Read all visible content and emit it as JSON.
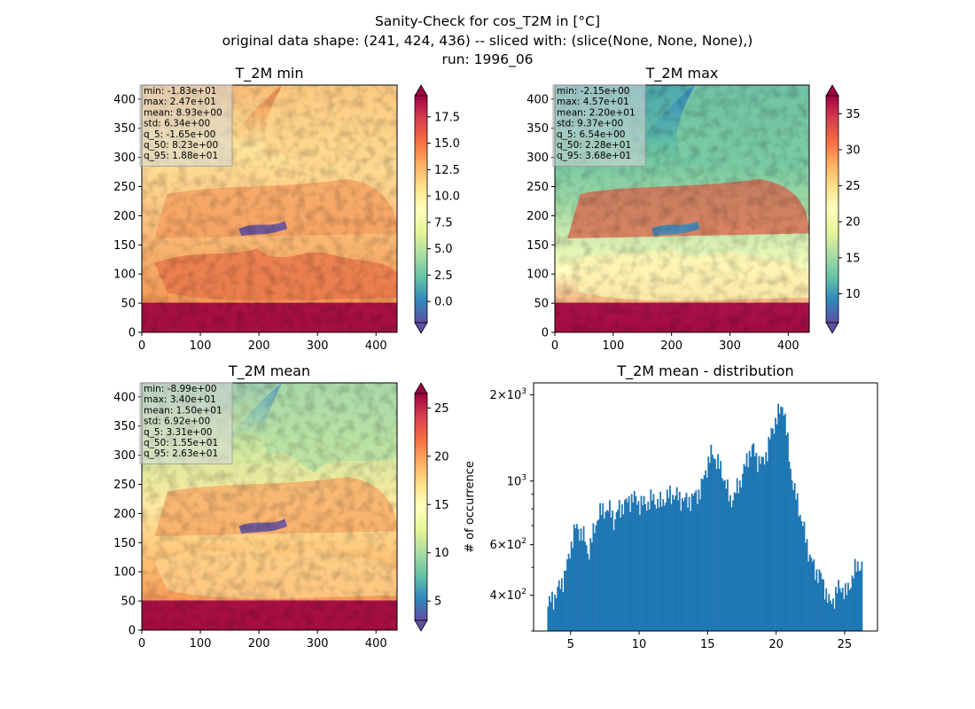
{
  "figure": {
    "suptitle_lines": [
      "Sanity-Check for cos_T2M in [°C]",
      "original data shape: (241, 424, 436) -- sliced with: (slice(None, None, None),)",
      "run: 1996_06"
    ]
  },
  "colors": {
    "colormap_spectral": [
      "#5e4fa2",
      "#3288bd",
      "#66c2a5",
      "#abdda4",
      "#e6f598",
      "#ffffbf",
      "#fee08b",
      "#fdae61",
      "#f46d43",
      "#d53e4f",
      "#9e0142"
    ],
    "histogram_bar": "#1f77b4",
    "stats_box": "#d9d9d9"
  },
  "chart_data": [
    {
      "type": "heatmap",
      "title": "T_2M min",
      "x_range": [
        0,
        436
      ],
      "y_range": [
        0,
        424
      ],
      "x_ticks": [
        0,
        100,
        200,
        300,
        400
      ],
      "y_ticks": [
        0,
        50,
        100,
        150,
        200,
        250,
        300,
        350,
        400
      ],
      "colorbar": {
        "range": [
          -2.0,
          19.5
        ],
        "ticks": [
          0.0,
          2.5,
          5.0,
          7.5,
          10.0,
          12.5,
          15.0,
          17.5
        ],
        "tick_labels": [
          "0.0",
          "2.5",
          "5.0",
          "7.5",
          "10.0",
          "12.5",
          "15.0",
          "17.5"
        ],
        "extend": "both"
      },
      "stats": [
        "min: -1.83e+01",
        "max: 2.47e+01",
        "mean: 8.93e+00",
        "std: 6.34e+00",
        "q_5: -1.65e+00",
        "q_50: 8.23e+00",
        "q_95: 1.88e+01"
      ]
    },
    {
      "type": "heatmap",
      "title": "T_2M max",
      "x_range": [
        0,
        436
      ],
      "y_range": [
        0,
        424
      ],
      "x_ticks": [
        0,
        100,
        200,
        300,
        400
      ],
      "y_ticks": [
        0,
        50,
        100,
        150,
        200,
        250,
        300,
        350,
        400
      ],
      "colorbar": {
        "range": [
          6.0,
          37.5
        ],
        "ticks": [
          10,
          15,
          20,
          25,
          30,
          35
        ],
        "tick_labels": [
          "10",
          "15",
          "20",
          "25",
          "30",
          "35"
        ],
        "extend": "both"
      },
      "stats": [
        "min: -2.15e+00",
        "max: 4.57e+01",
        "mean: 2.20e+01",
        "std: 9.37e+00",
        "q_5: 6.54e+00",
        "q_50: 2.28e+01",
        "q_95: 3.68e+01"
      ]
    },
    {
      "type": "heatmap",
      "title": "T_2M mean",
      "x_range": [
        0,
        436
      ],
      "y_range": [
        0,
        424
      ],
      "x_ticks": [
        0,
        100,
        200,
        300,
        400
      ],
      "y_ticks": [
        0,
        50,
        100,
        150,
        200,
        250,
        300,
        350,
        400
      ],
      "colorbar": {
        "range": [
          3.0,
          26.5
        ],
        "ticks": [
          5,
          10,
          15,
          20,
          25
        ],
        "tick_labels": [
          "5",
          "10",
          "15",
          "20",
          "25"
        ],
        "extend": "both"
      },
      "stats": [
        "min: -8.99e+00",
        "max: 3.40e+01",
        "mean: 1.50e+01",
        "std: 6.92e+00",
        "q_5: 3.31e+00",
        "q_50: 1.55e+01",
        "q_95: 2.63e+01"
      ]
    },
    {
      "type": "bar",
      "title": "T_2M mean - distribution",
      "ylabel": "# of occurrence",
      "xlim": [
        2.3,
        27.4
      ],
      "ylim": [
        300,
        2200
      ],
      "y_scale": "log",
      "x_ticks": [
        5,
        10,
        15,
        20,
        25
      ],
      "y_ticks": [
        {
          "value": 400,
          "base": "4×10",
          "exp": "2"
        },
        {
          "value": 600,
          "base": "6×10",
          "exp": "2"
        },
        {
          "value": 1000,
          "base": "10",
          "exp": "3"
        },
        {
          "value": 2000,
          "base": "2×10",
          "exp": "3"
        }
      ],
      "bin_start": 3.3,
      "bin_width": 0.1,
      "anchors": [
        [
          3.3,
          360
        ],
        [
          3.5,
          380
        ],
        [
          3.9,
          400
        ],
        [
          4.2,
          430
        ],
        [
          4.5,
          460
        ],
        [
          4.8,
          520
        ],
        [
          5.0,
          590
        ],
        [
          5.2,
          650
        ],
        [
          5.4,
          690
        ],
        [
          5.8,
          660
        ],
        [
          6.0,
          630
        ],
        [
          6.3,
          560
        ],
        [
          6.5,
          610
        ],
        [
          7.0,
          760
        ],
        [
          7.5,
          800
        ],
        [
          8.0,
          780
        ],
        [
          8.2,
          720
        ],
        [
          8.5,
          800
        ],
        [
          9.0,
          830
        ],
        [
          9.5,
          880
        ],
        [
          10.0,
          840
        ],
        [
          10.5,
          830
        ],
        [
          11.0,
          870
        ],
        [
          11.5,
          830
        ],
        [
          12.0,
          880
        ],
        [
          12.5,
          900
        ],
        [
          13.0,
          870
        ],
        [
          13.5,
          850
        ],
        [
          14.0,
          880
        ],
        [
          14.5,
          930
        ],
        [
          15.0,
          1150
        ],
        [
          15.3,
          1250
        ],
        [
          15.6,
          1200
        ],
        [
          16.0,
          1080
        ],
        [
          16.3,
          1000
        ],
        [
          16.6,
          850
        ],
        [
          17.0,
          900
        ],
        [
          17.4,
          1000
        ],
        [
          17.8,
          1150
        ],
        [
          18.0,
          1250
        ],
        [
          18.3,
          1300
        ],
        [
          18.6,
          1200
        ],
        [
          19.0,
          1150
        ],
        [
          19.4,
          1300
        ],
        [
          19.7,
          1500
        ],
        [
          20.0,
          1650
        ],
        [
          20.3,
          1750
        ],
        [
          20.5,
          1900
        ],
        [
          20.7,
          1550
        ],
        [
          21.0,
          1150
        ],
        [
          21.3,
          930
        ],
        [
          21.6,
          830
        ],
        [
          22.0,
          680
        ],
        [
          22.4,
          560
        ],
        [
          22.8,
          490
        ],
        [
          23.2,
          470
        ],
        [
          23.6,
          420
        ],
        [
          23.9,
          370
        ],
        [
          24.2,
          390
        ],
        [
          24.5,
          420
        ],
        [
          24.8,
          430
        ],
        [
          25.1,
          400
        ],
        [
          25.4,
          440
        ],
        [
          25.7,
          480
        ],
        [
          26.0,
          520
        ],
        [
          26.2,
          500
        ]
      ]
    }
  ]
}
